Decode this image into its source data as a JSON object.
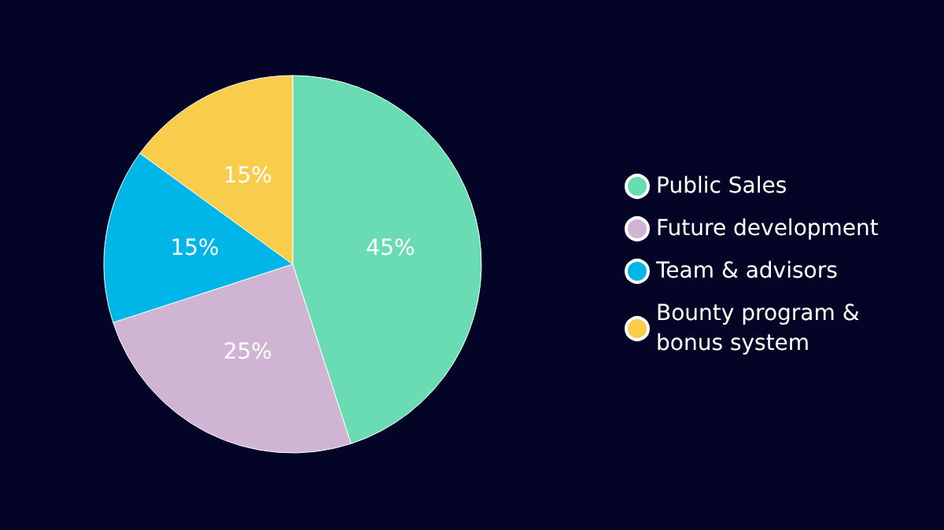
{
  "chart_data": {
    "type": "pie",
    "categories": [
      "Public Sales",
      "Future development",
      "Team & advisors",
      "Bounty program & bonus system"
    ],
    "values": [
      45,
      25,
      15,
      15
    ],
    "colors": [
      "#6adcb4",
      "#cfb4d3",
      "#00b6e8",
      "#f9cd4c"
    ],
    "value_labels": [
      "45%",
      "25%",
      "15%",
      "15%"
    ],
    "legend": "right"
  }
}
